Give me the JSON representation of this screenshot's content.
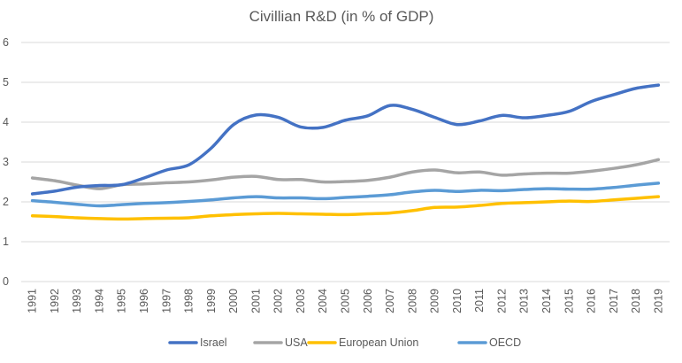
{
  "chart_data": {
    "type": "line",
    "title": "Civillian R&D (in % of GDP)",
    "xlabel": "",
    "ylabel": "",
    "ylim": [
      0,
      6
    ],
    "yticks": [
      "0",
      "1",
      "2",
      "3",
      "4",
      "5",
      "6"
    ],
    "grid": true,
    "legend_position": "bottom",
    "x": [
      "1991",
      "1992",
      "1993",
      "1994",
      "1995",
      "1996",
      "1997",
      "1998",
      "1999",
      "2000",
      "2001",
      "2002",
      "2003",
      "2004",
      "2005",
      "2006",
      "2007",
      "2008",
      "2009",
      "2010",
      "2011",
      "2012",
      "2013",
      "2014",
      "2015",
      "2016",
      "2017",
      "2018",
      "2019"
    ],
    "series": [
      {
        "name": "Israel",
        "color": "#4472c4",
        "values": [
          2.2,
          2.27,
          2.37,
          2.41,
          2.43,
          2.6,
          2.8,
          2.93,
          3.35,
          3.94,
          4.18,
          4.12,
          3.88,
          3.87,
          4.05,
          4.16,
          4.42,
          4.32,
          4.12,
          3.94,
          4.03,
          4.17,
          4.11,
          4.17,
          4.27,
          4.52,
          4.69,
          4.85,
          4.93
        ]
      },
      {
        "name": "USA",
        "color": "#a5a5a5",
        "values": [
          2.6,
          2.53,
          2.42,
          2.33,
          2.43,
          2.45,
          2.48,
          2.5,
          2.55,
          2.62,
          2.64,
          2.56,
          2.56,
          2.5,
          2.51,
          2.54,
          2.62,
          2.75,
          2.8,
          2.73,
          2.75,
          2.67,
          2.7,
          2.72,
          2.72,
          2.77,
          2.84,
          2.93,
          3.06
        ]
      },
      {
        "name": "European Union",
        "color": "#ffc000",
        "values": [
          1.65,
          1.63,
          1.6,
          1.58,
          1.57,
          1.58,
          1.59,
          1.6,
          1.65,
          1.68,
          1.7,
          1.71,
          1.7,
          1.69,
          1.68,
          1.7,
          1.72,
          1.78,
          1.86,
          1.87,
          1.91,
          1.96,
          1.98,
          2.0,
          2.02,
          2.01,
          2.05,
          2.09,
          2.13
        ]
      },
      {
        "name": "OECD",
        "color": "#5b9bd5",
        "values": [
          2.03,
          1.99,
          1.94,
          1.9,
          1.93,
          1.96,
          1.98,
          2.01,
          2.05,
          2.1,
          2.13,
          2.1,
          2.1,
          2.08,
          2.11,
          2.14,
          2.18,
          2.25,
          2.29,
          2.26,
          2.29,
          2.28,
          2.31,
          2.33,
          2.32,
          2.32,
          2.36,
          2.42,
          2.47
        ]
      }
    ]
  }
}
